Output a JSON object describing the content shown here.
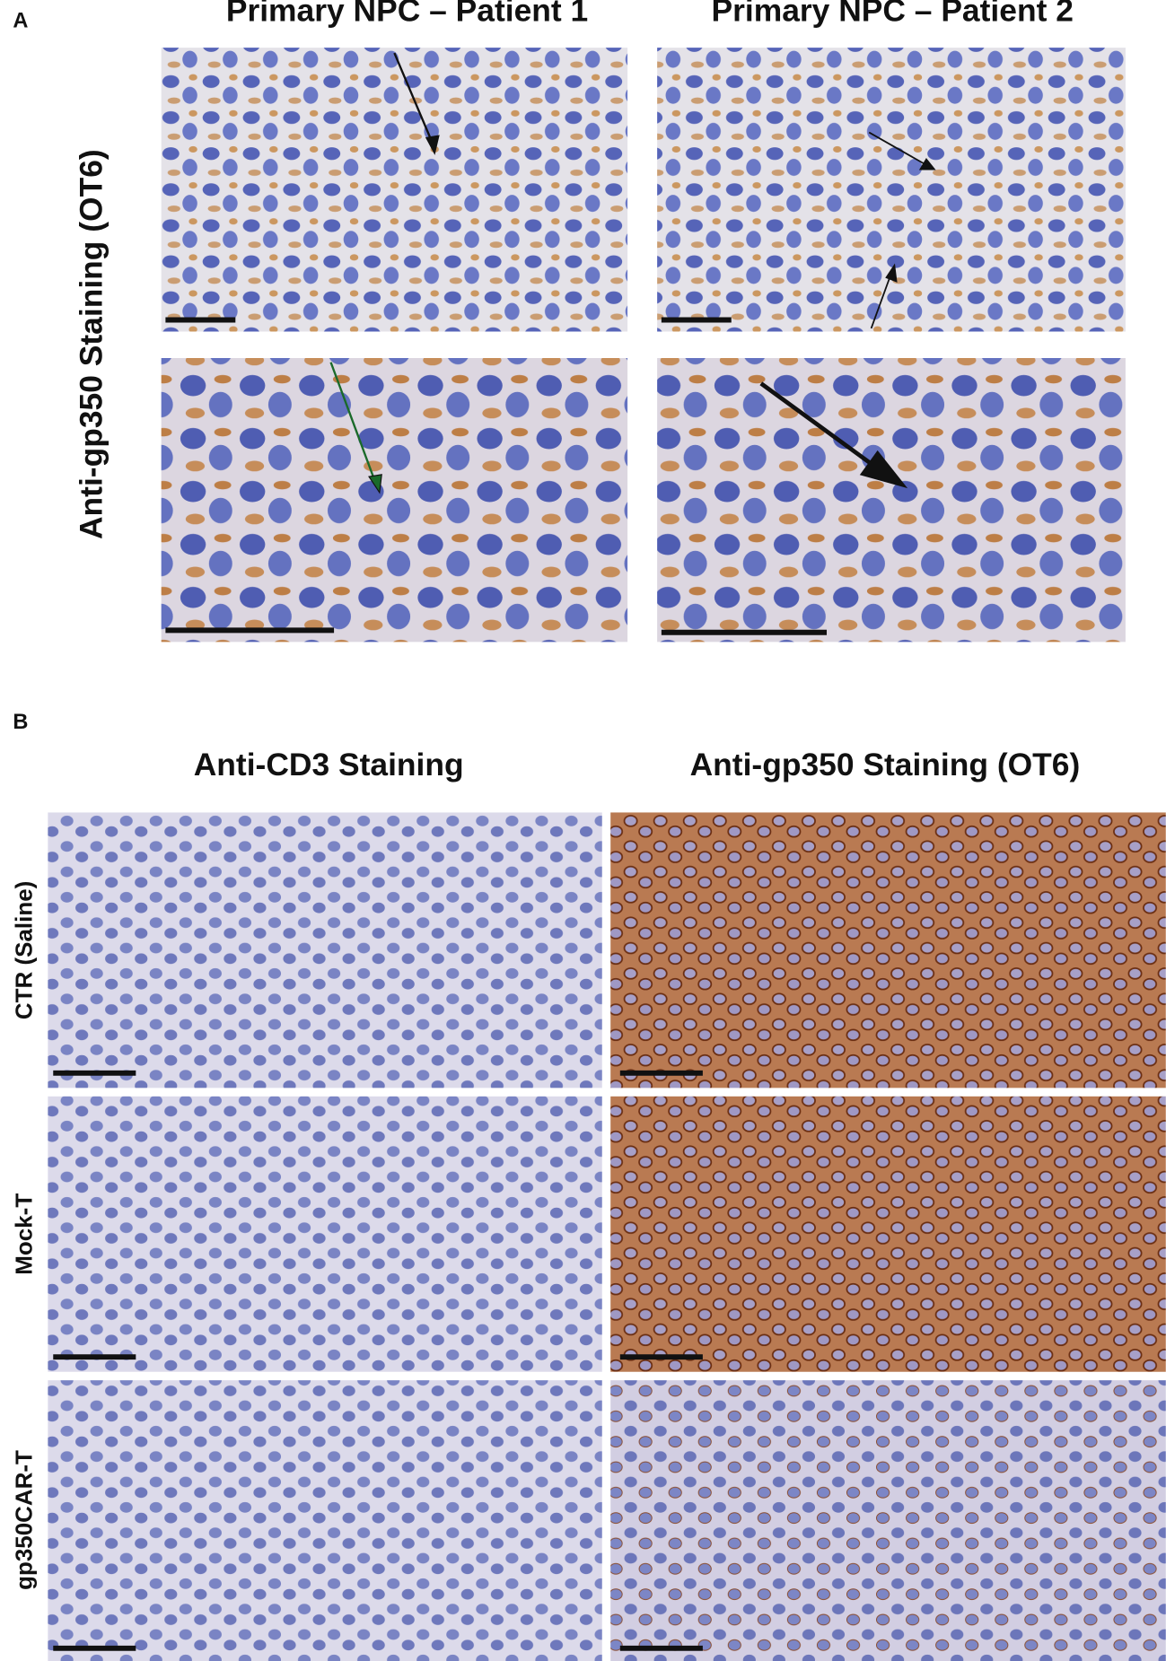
{
  "panel_a": {
    "label": "A",
    "column_titles": [
      "Primary NPC – Patient 1",
      "Primary NPC – Patient 2"
    ],
    "row_label": "Anti-gp350 Staining (OT6)"
  },
  "panel_b": {
    "label": "B",
    "column_titles": [
      "Anti-CD3 Staining",
      "Anti-gp350 Staining (OT6)"
    ],
    "row_labels": [
      "CTR (Saline)",
      "Mock-T",
      "gp350CAR-T"
    ]
  }
}
